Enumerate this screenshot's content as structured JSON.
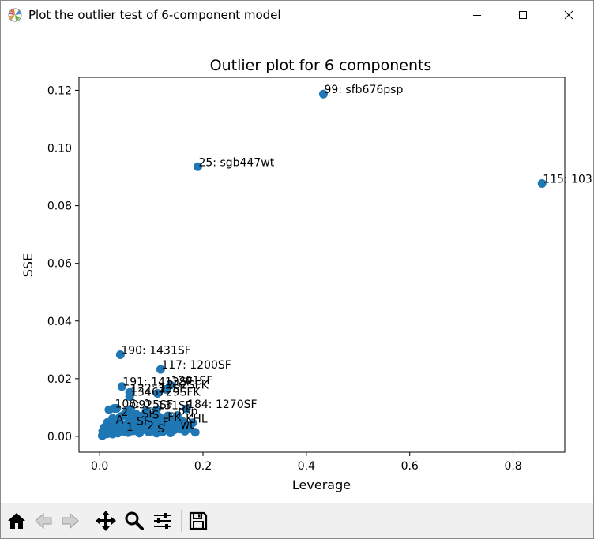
{
  "window": {
    "title": "Plot the outlier test of 6-component model",
    "icon": "matplotlib-logo-icon",
    "controls": [
      "minimize-icon",
      "maximize-icon",
      "close-icon"
    ]
  },
  "chart_data": {
    "type": "scatter",
    "title": "Outlier plot for 6 components",
    "xlabel": "Leverage",
    "ylabel": "SSE",
    "xlim": [
      -0.04,
      0.9
    ],
    "ylim": [
      -0.0055,
      0.1245
    ],
    "xticks": [
      "0.0",
      "0.2",
      "0.4",
      "0.6",
      "0.8"
    ],
    "yticks": [
      "0.00",
      "0.02",
      "0.04",
      "0.06",
      "0.08",
      "0.10",
      "0.12"
    ],
    "xtick_values": [
      0.0,
      0.2,
      0.4,
      0.6,
      0.8
    ],
    "ytick_values": [
      0.0,
      0.02,
      0.04,
      0.06,
      0.08,
      0.1,
      0.12
    ],
    "marker_color": "#1f77b4",
    "grid": false,
    "labeled_points": [
      {
        "x": 0.433,
        "y": 0.1187,
        "label": "99: sfb676psp"
      },
      {
        "x": 0.19,
        "y": 0.0935,
        "label": "25: sgb447wt"
      },
      {
        "x": 0.856,
        "y": 0.0877,
        "label": "115: 103"
      },
      {
        "x": 0.04,
        "y": 0.0283,
        "label": "190: 1431SF"
      },
      {
        "x": 0.118,
        "y": 0.0232,
        "label": "117: 1200SF"
      },
      {
        "x": 0.043,
        "y": 0.0173,
        "label": "191: 1413SF"
      },
      {
        "x": 0.137,
        "y": 0.0178,
        "label": "1201SF"
      },
      {
        "x": 0.128,
        "y": 0.0163,
        "label": "202SFK"
      },
      {
        "x": 0.058,
        "y": 0.0152,
        "label": "122: 1"
      },
      {
        "x": 0.112,
        "y": 0.0149,
        "label": "25SF"
      },
      {
        "x": 0.058,
        "y": 0.0138,
        "label": "1346729SFK"
      },
      {
        "x": 0.168,
        "y": 0.0095,
        "label": "184: 1270SF"
      },
      {
        "x": 0.028,
        "y": 0.0097,
        "label": "106: 0"
      },
      {
        "x": 0.06,
        "y": 0.0094,
        "label": "0925SF"
      },
      {
        "x": 0.11,
        "y": 0.0092,
        "label": "131SF"
      },
      {
        "x": 0.15,
        "y": 0.0072,
        "label": "psp"
      },
      {
        "x": 0.04,
        "y": 0.0068,
        "label": "2"
      },
      {
        "x": 0.08,
        "y": 0.0063,
        "label": "SF"
      },
      {
        "x": 0.1,
        "y": 0.0058,
        "label": "S"
      },
      {
        "x": 0.13,
        "y": 0.0052,
        "label": "FK"
      },
      {
        "x": 0.165,
        "y": 0.0045,
        "label": "KHL"
      },
      {
        "x": 0.03,
        "y": 0.0042,
        "label": "A"
      },
      {
        "x": 0.07,
        "y": 0.0037,
        "label": "SF"
      },
      {
        "x": 0.12,
        "y": 0.0032,
        "label": "F"
      },
      {
        "x": 0.155,
        "y": 0.0025,
        "label": "wt"
      },
      {
        "x": 0.09,
        "y": 0.0022,
        "label": "2"
      },
      {
        "x": 0.05,
        "y": 0.0016,
        "label": "1"
      },
      {
        "x": 0.11,
        "y": 0.0011,
        "label": "S"
      }
    ],
    "cluster_points": [
      [
        0.005,
        0.0002
      ],
      [
        0.008,
        0.0006
      ],
      [
        0.01,
        0.0012
      ],
      [
        0.012,
        0.002
      ],
      [
        0.015,
        0.0009
      ],
      [
        0.018,
        0.0028
      ],
      [
        0.02,
        0.0015
      ],
      [
        0.022,
        0.0035
      ],
      [
        0.025,
        0.0008
      ],
      [
        0.027,
        0.0045
      ],
      [
        0.03,
        0.0022
      ],
      [
        0.032,
        0.0052
      ],
      [
        0.035,
        0.0011
      ],
      [
        0.037,
        0.0062
      ],
      [
        0.04,
        0.0031
      ],
      [
        0.042,
        0.0018
      ],
      [
        0.045,
        0.0072
      ],
      [
        0.047,
        0.0041
      ],
      [
        0.05,
        0.0026
      ],
      [
        0.052,
        0.0085
      ],
      [
        0.055,
        0.0013
      ],
      [
        0.057,
        0.0055
      ],
      [
        0.06,
        0.0034
      ],
      [
        0.062,
        0.0066
      ],
      [
        0.065,
        0.0019
      ],
      [
        0.067,
        0.0048
      ],
      [
        0.07,
        0.0078
      ],
      [
        0.072,
        0.0029
      ],
      [
        0.075,
        0.0058
      ],
      [
        0.077,
        0.0011
      ],
      [
        0.08,
        0.0042
      ],
      [
        0.082,
        0.0071
      ],
      [
        0.085,
        0.0024
      ],
      [
        0.087,
        0.0053
      ],
      [
        0.09,
        0.0088
      ],
      [
        0.092,
        0.0036
      ],
      [
        0.095,
        0.0015
      ],
      [
        0.097,
        0.0063
      ],
      [
        0.1,
        0.0044
      ],
      [
        0.102,
        0.0027
      ],
      [
        0.105,
        0.0075
      ],
      [
        0.107,
        0.0038
      ],
      [
        0.11,
        0.0056
      ],
      [
        0.112,
        0.0021
      ],
      [
        0.115,
        0.0067
      ],
      [
        0.117,
        0.0033
      ],
      [
        0.12,
        0.0049
      ],
      [
        0.122,
        0.0016
      ],
      [
        0.125,
        0.0061
      ],
      [
        0.127,
        0.0039
      ],
      [
        0.13,
        0.0025
      ],
      [
        0.132,
        0.0071
      ],
      [
        0.135,
        0.0044
      ],
      [
        0.137,
        0.0012
      ],
      [
        0.14,
        0.0058
      ],
      [
        0.142,
        0.0035
      ],
      [
        0.145,
        0.0023
      ],
      [
        0.147,
        0.0062
      ],
      [
        0.15,
        0.0041
      ],
      [
        0.155,
        0.0028
      ],
      [
        0.16,
        0.0052
      ],
      [
        0.165,
        0.0018
      ],
      [
        0.17,
        0.0039
      ],
      [
        0.175,
        0.0026
      ],
      [
        0.18,
        0.0047
      ],
      [
        0.185,
        0.0014
      ],
      [
        0.018,
        0.0092
      ],
      [
        0.033,
        0.0097
      ],
      [
        0.025,
        0.0062
      ],
      [
        0.015,
        0.0048
      ],
      [
        0.009,
        0.0031
      ],
      [
        0.006,
        0.0018
      ]
    ]
  },
  "toolbar": {
    "tools": [
      "home-icon",
      "back-icon",
      "forward-icon",
      "pan-icon",
      "zoom-icon",
      "configure-subplots-icon",
      "save-icon"
    ]
  }
}
